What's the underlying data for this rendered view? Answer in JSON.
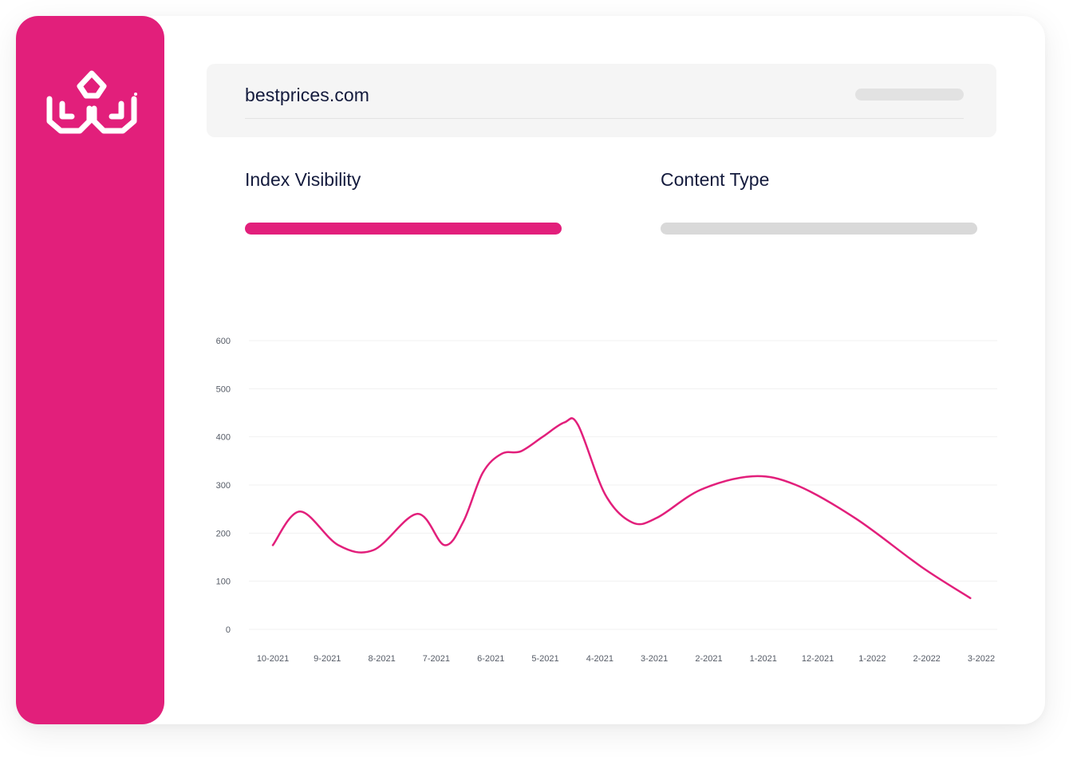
{
  "site": {
    "domain": "bestprices.com"
  },
  "tabs": [
    {
      "label": "Index Visibility",
      "active": true
    },
    {
      "label": "Content Type",
      "active": false
    }
  ],
  "colors": {
    "accent": "#e21f7b",
    "inactive_bar": "#d9d9d9",
    "text_dark": "#141b3d"
  },
  "sidebar": {
    "logo_icon": "brand-logo-icon"
  },
  "chart_data": {
    "type": "line",
    "x": [
      "10-2021",
      "9-2021",
      "8-2021",
      "7-2021",
      "6-2021",
      "5-2021",
      "4-2021",
      "3-2021",
      "2-2021",
      "1-2021",
      "12-2021",
      "1-2022",
      "2-2022",
      "3-2022"
    ],
    "y_ticks": [
      600,
      500,
      400,
      300,
      200,
      100,
      0
    ],
    "ylim": [
      0,
      600
    ],
    "grid": true,
    "series": [
      {
        "color": "#e21f7b",
        "points": [
          {
            "x": 0.0,
            "y": 175
          },
          {
            "x": 0.5,
            "y": 245
          },
          {
            "x": 1.2,
            "y": 175
          },
          {
            "x": 1.85,
            "y": 165
          },
          {
            "x": 2.65,
            "y": 240
          },
          {
            "x": 3.15,
            "y": 175
          },
          {
            "x": 3.5,
            "y": 225
          },
          {
            "x": 3.85,
            "y": 325
          },
          {
            "x": 4.2,
            "y": 365
          },
          {
            "x": 4.55,
            "y": 370
          },
          {
            "x": 4.95,
            "y": 400
          },
          {
            "x": 5.35,
            "y": 430
          },
          {
            "x": 5.6,
            "y": 425
          },
          {
            "x": 6.1,
            "y": 280
          },
          {
            "x": 6.6,
            "y": 222
          },
          {
            "x": 7.05,
            "y": 232
          },
          {
            "x": 7.85,
            "y": 290
          },
          {
            "x": 8.8,
            "y": 318
          },
          {
            "x": 9.6,
            "y": 300
          },
          {
            "x": 10.7,
            "y": 230
          },
          {
            "x": 11.9,
            "y": 130
          },
          {
            "x": 12.8,
            "y": 65
          }
        ]
      }
    ]
  }
}
